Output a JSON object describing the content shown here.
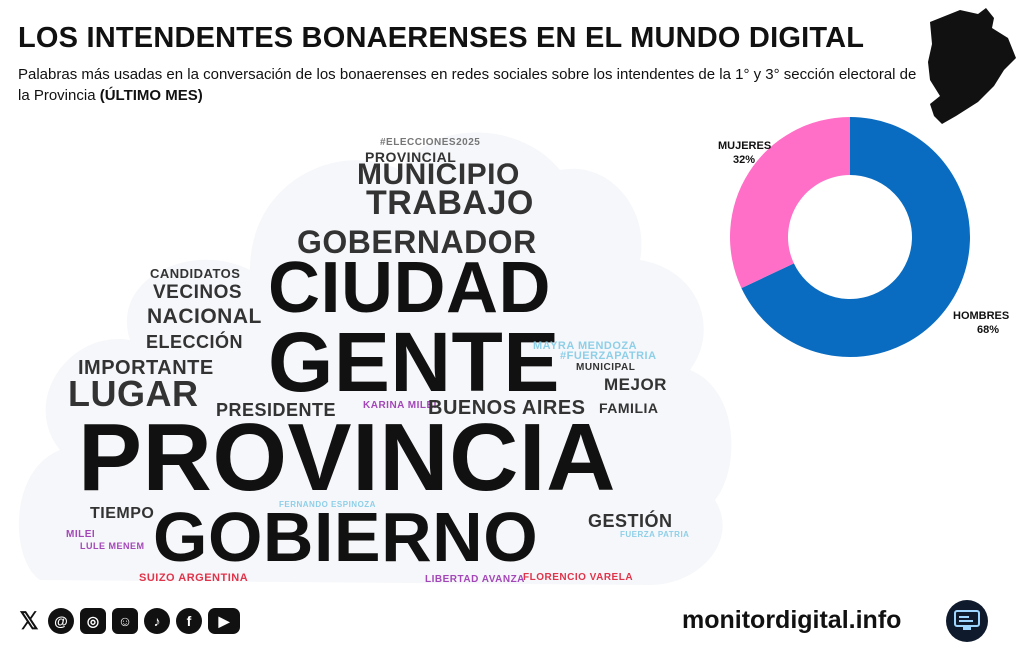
{
  "header": {
    "title": "LOS INTENDENTES BONAERENSES EN EL MUNDO DIGITAL",
    "subtitle_plain": "Palabras más usadas en la conversación de los bonaerenses en redes sociales sobre los intendentes de la 1° y 3° sección electoral de la Provincia",
    "subtitle_bold": "(ÚLTIMO MES)"
  },
  "colors": {
    "hombres": "#0a6cc0",
    "mujeres": "#ff6ec7",
    "dark": "#111111"
  },
  "wordcloud": [
    {
      "text": "#ELECCIONES2025",
      "color": "#777777"
    },
    {
      "text": "PROVINCIAL",
      "color": "#333333"
    },
    {
      "text": "MUNICIPIO",
      "color": "#333333"
    },
    {
      "text": "TRABAJO",
      "color": "#333333"
    },
    {
      "text": "GOBERNADOR",
      "color": "#333333"
    },
    {
      "text": "CANDIDATOS",
      "color": "#333333"
    },
    {
      "text": "VECINOS",
      "color": "#333333"
    },
    {
      "text": "CIUDAD",
      "color": "#111111"
    },
    {
      "text": "NACIONAL",
      "color": "#333333"
    },
    {
      "text": "ELECCIÓN",
      "color": "#333333"
    },
    {
      "text": "GENTE",
      "color": "#111111"
    },
    {
      "text": "MAYRA MENDOZA",
      "color": "#8ecfe8"
    },
    {
      "text": "#FUERZAPATRIA",
      "color": "#8ecfe8"
    },
    {
      "text": "IMPORTANTE",
      "color": "#333333"
    },
    {
      "text": "MUNICIPAL",
      "color": "#333333"
    },
    {
      "text": "LUGAR",
      "color": "#333333"
    },
    {
      "text": "MEJOR",
      "color": "#333333"
    },
    {
      "text": "PRESIDENTE",
      "color": "#333333"
    },
    {
      "text": "KARINA MILEI",
      "color": "#a347b8"
    },
    {
      "text": "BUENOS AIRES",
      "color": "#333333"
    },
    {
      "text": "FAMILIA",
      "color": "#333333"
    },
    {
      "text": "PROVINCIA",
      "color": "#111111"
    },
    {
      "text": "TIEMPO",
      "color": "#333333"
    },
    {
      "text": "FERNANDO ESPINOZA",
      "color": "#8ecfe8"
    },
    {
      "text": "GOBIERNO",
      "color": "#111111"
    },
    {
      "text": "GESTIÓN",
      "color": "#333333"
    },
    {
      "text": "MILEI",
      "color": "#a347b8"
    },
    {
      "text": "FUERZA PATRIA",
      "color": "#8ecfe8"
    },
    {
      "text": "LULE MENEM",
      "color": "#a347b8"
    },
    {
      "text": "SUIZO ARGENTINA",
      "color": "#e0344a"
    },
    {
      "text": "LIBERTAD AVANZA",
      "color": "#a347b8"
    },
    {
      "text": "FLORENCIO VARELA",
      "color": "#e0344a"
    }
  ],
  "chart_data": {
    "type": "pie",
    "title": "",
    "categories": [
      "HOMBRES",
      "MUJERES"
    ],
    "values": [
      68,
      32
    ],
    "value_labels": [
      "68%",
      "32%"
    ],
    "colors": [
      "#0a6cc0",
      "#ff6ec7"
    ]
  },
  "footer": {
    "social_icons": [
      "x-icon",
      "threads-icon",
      "instagram-icon",
      "bot-icon",
      "tiktok-icon",
      "facebook-icon",
      "youtube-icon"
    ],
    "brand": "monitordigital.info"
  }
}
